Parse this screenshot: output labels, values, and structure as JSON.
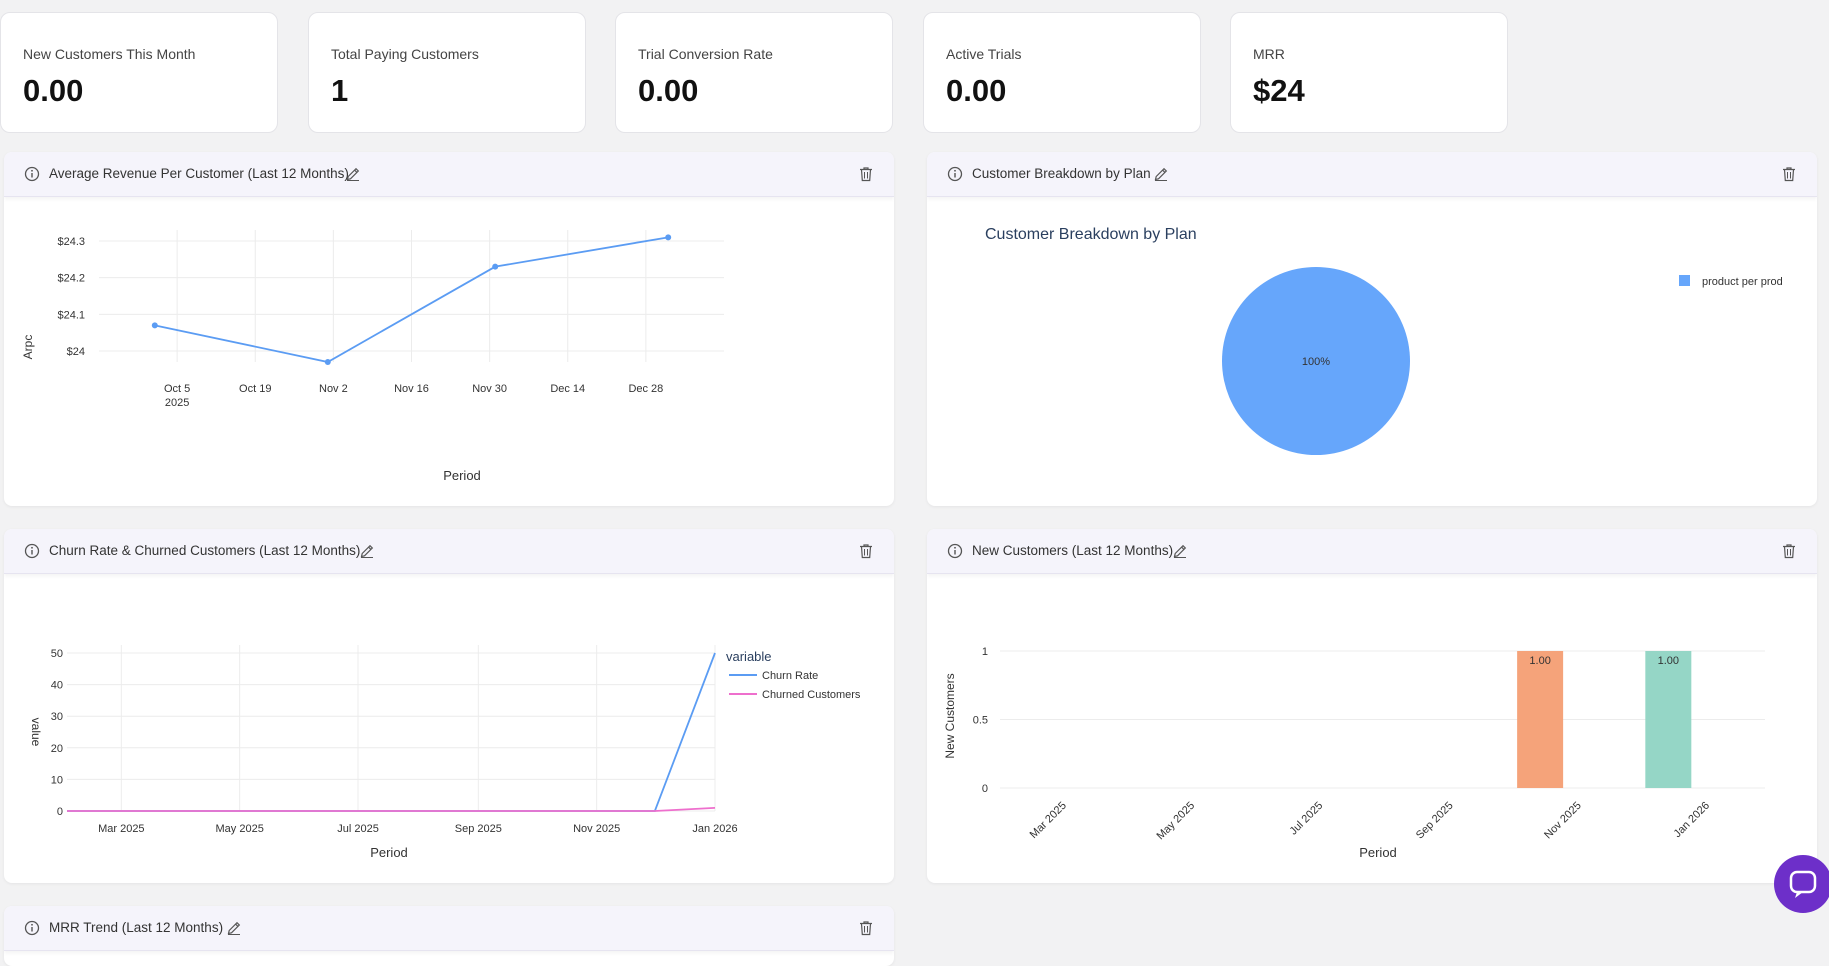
{
  "kpis": [
    {
      "label": "New Customers This Month",
      "value": "0.00"
    },
    {
      "label": "Total Paying Customers",
      "value": "1"
    },
    {
      "label": "Trial Conversion Rate",
      "value": "0.00"
    },
    {
      "label": "Active Trials",
      "value": "0.00"
    },
    {
      "label": "MRR",
      "value": "$24"
    }
  ],
  "widgets": {
    "arpc": {
      "title": "Average Revenue Per Customer (Last 12 Months)"
    },
    "breakdown": {
      "title": "Customer Breakdown by Plan"
    },
    "churn": {
      "title": "Churn Rate & Churned Customers (Last 12 Months)"
    },
    "newcust": {
      "title": "New Customers (Last 12 Months)"
    },
    "mrr": {
      "title": "MRR Trend (Last 12 Months)"
    }
  },
  "icons": {
    "info": "info-icon",
    "edit": "pencil-icon",
    "delete": "trash-icon",
    "chat": "chat-icon"
  },
  "colors": {
    "accent": "#6d2fc9",
    "series_blue": "#5b9cf3",
    "series_pink": "#ee6fcd",
    "bar_orange": "#f5a37a",
    "bar_teal": "#95d6c6",
    "pie_blue": "#66a6fb"
  },
  "chart_data": [
    {
      "type": "line",
      "title": "",
      "xlabel": "Period",
      "ylabel": "Arpc",
      "x_ticks": [
        "Oct 5",
        "Oct 19",
        "Nov 2",
        "Nov 16",
        "Nov 30",
        "Dec 14",
        "Dec 28"
      ],
      "x_tick_sub": "2025",
      "y_ticks": [
        "$24",
        "$24.1",
        "$24.2",
        "$24.3"
      ],
      "ylim": [
        23.97,
        24.33
      ],
      "series": [
        {
          "x": [
            "2025-10-01",
            "2025-11-01",
            "2025-12-01",
            "2026-01-01"
          ],
          "values": [
            24.07,
            23.97,
            24.23,
            24.31
          ]
        }
      ],
      "grid": true
    },
    {
      "type": "pie",
      "title": "Customer Breakdown by Plan",
      "labels": [
        "product per prod"
      ],
      "values": [
        100
      ],
      "slice_labels": [
        "100%"
      ],
      "legend": "top-right"
    },
    {
      "type": "line",
      "title": "",
      "xlabel": "Period",
      "ylabel": "value",
      "legend_title": "variable",
      "x_ticks": [
        "Mar 2025",
        "May 2025",
        "Jul 2025",
        "Sep 2025",
        "Nov 2025",
        "Jan 2026"
      ],
      "y_ticks": [
        "0",
        "10",
        "20",
        "30",
        "40",
        "50"
      ],
      "ylim": [
        0,
        50
      ],
      "series": [
        {
          "name": "Churn Rate",
          "x": [
            "2025-02-01",
            "2025-03-01",
            "2025-04-01",
            "2025-05-01",
            "2025-06-01",
            "2025-07-01",
            "2025-08-01",
            "2025-09-01",
            "2025-10-01",
            "2025-11-01",
            "2025-12-01",
            "2026-01-01"
          ],
          "values": [
            0,
            0,
            0,
            0,
            0,
            0,
            0,
            0,
            0,
            0,
            0,
            50
          ]
        },
        {
          "name": "Churned Customers",
          "x": [
            "2025-02-01",
            "2025-03-01",
            "2025-04-01",
            "2025-05-01",
            "2025-06-01",
            "2025-07-01",
            "2025-08-01",
            "2025-09-01",
            "2025-10-01",
            "2025-11-01",
            "2025-12-01",
            "2026-01-01"
          ],
          "values": [
            0,
            0,
            0,
            0,
            0,
            0,
            0,
            0,
            0,
            0,
            0,
            1
          ]
        }
      ],
      "legend": "right",
      "grid": true
    },
    {
      "type": "bar",
      "title": "",
      "xlabel": "Period",
      "ylabel": "New Customers",
      "x_ticks": [
        "Mar 2025",
        "May 2025",
        "Jul 2025",
        "Sep 2025",
        "Nov 2025",
        "Jan 2026"
      ],
      "y_ticks": [
        "0",
        "0.5",
        "1"
      ],
      "ylim": [
        0,
        1
      ],
      "bars": [
        {
          "x": "2025-10",
          "value": 1,
          "label": "1.00",
          "color": "#f5a37a"
        },
        {
          "x": "2025-12",
          "value": 1,
          "label": "1.00",
          "color": "#95d6c6"
        }
      ],
      "grid": true
    }
  ]
}
